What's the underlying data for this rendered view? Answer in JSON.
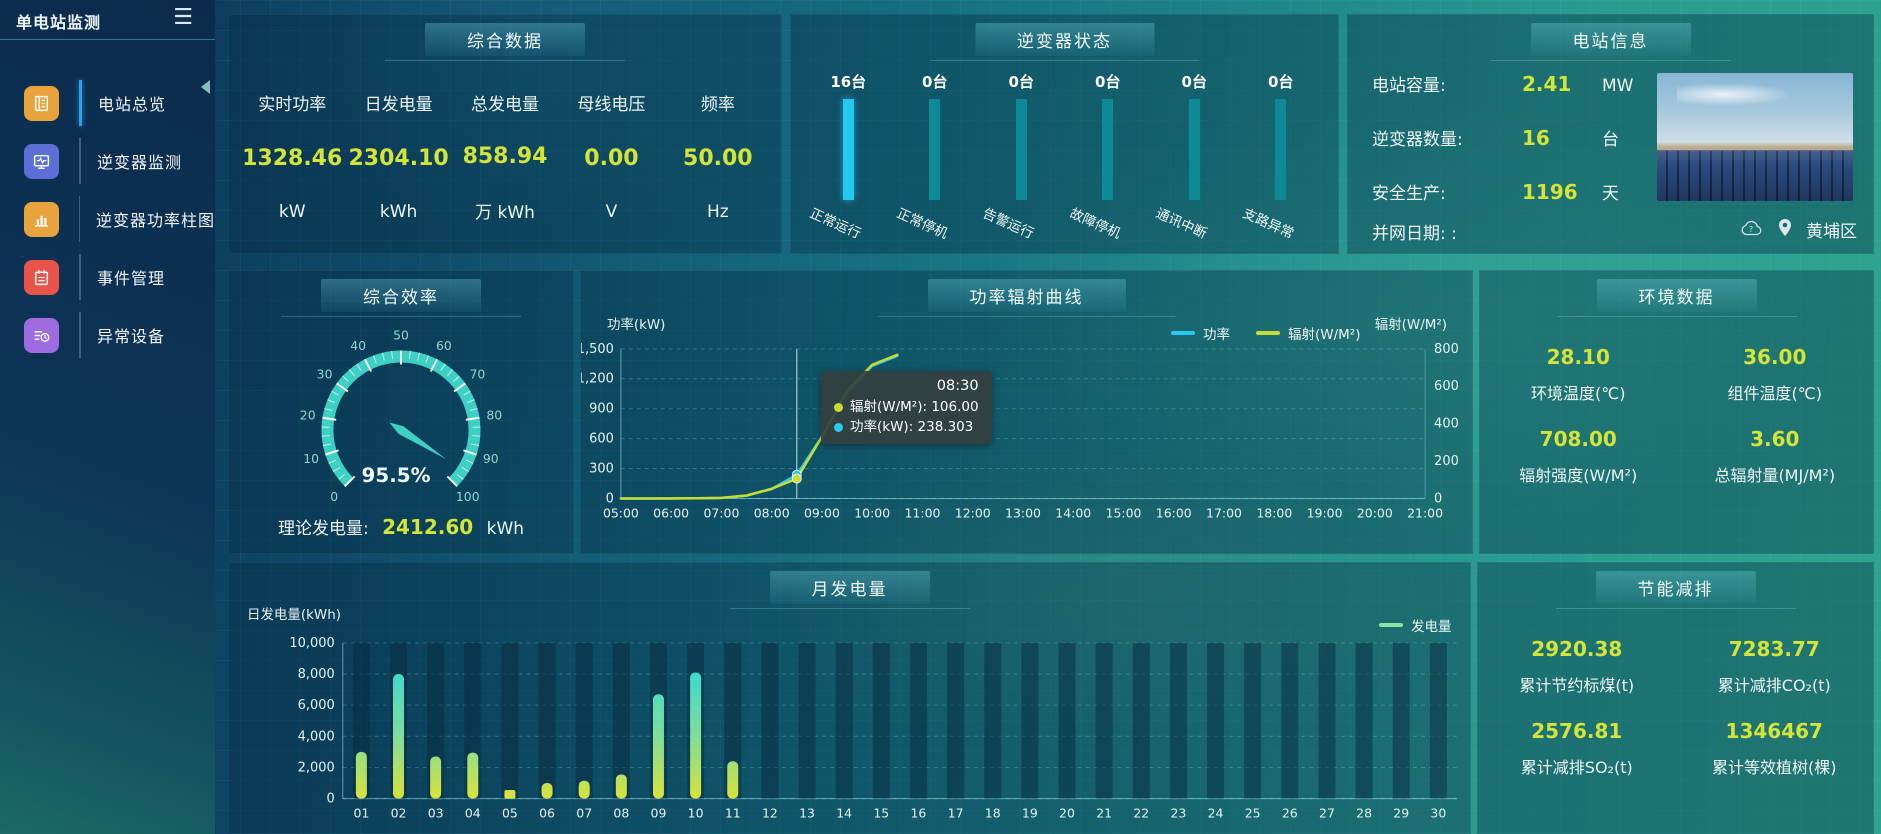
{
  "sidebar": {
    "title": "单电站监测",
    "menu": [
      {
        "label": "电站总览",
        "icon": "report-icon",
        "color": "#e8a33d",
        "active": true
      },
      {
        "label": "逆变器监测",
        "icon": "monitor-icon",
        "color": "#5c6fd6",
        "active": false
      },
      {
        "label": "逆变器功率柱图",
        "icon": "barchart-icon",
        "color": "#e8a33d",
        "active": false
      },
      {
        "label": "事件管理",
        "icon": "event-icon",
        "color": "#e85449",
        "active": false
      },
      {
        "label": "异常设备",
        "icon": "device-icon",
        "color": "#9e6be0",
        "active": false
      }
    ]
  },
  "overview": {
    "title": "综合数据",
    "metrics": [
      {
        "label": "实时功率",
        "value": "1328.46",
        "unit": "kW"
      },
      {
        "label": "日发电量",
        "value": "2304.10",
        "unit": "kWh"
      },
      {
        "label": "总发电量",
        "value": "858.94",
        "unit": "万 kWh"
      },
      {
        "label": "母线电压",
        "value": "0.00",
        "unit": "V"
      },
      {
        "label": "频率",
        "value": "50.00",
        "unit": "Hz"
      }
    ]
  },
  "inverter_status": {
    "title": "逆变器状态",
    "items": [
      {
        "count": "16台",
        "label": "正常运行",
        "highlight": true
      },
      {
        "count": "0台",
        "label": "正常停机",
        "highlight": false
      },
      {
        "count": "0台",
        "label": "告警运行",
        "highlight": false
      },
      {
        "count": "0台",
        "label": "故障停机",
        "highlight": false
      },
      {
        "count": "0台",
        "label": "通讯中断",
        "highlight": false
      },
      {
        "count": "0台",
        "label": "支路异常",
        "highlight": false
      }
    ]
  },
  "station_info": {
    "title": "电站信息",
    "rows": [
      {
        "label": "电站容量:",
        "value": "2.41",
        "unit": "MW"
      },
      {
        "label": "逆变器数量:",
        "value": "16",
        "unit": "台"
      },
      {
        "label": "安全生产:",
        "value": "1196",
        "unit": "天"
      }
    ],
    "grid_date_label": "并网日期:  :",
    "location": "黄埔区"
  },
  "efficiency": {
    "title": "综合效率",
    "gauge": {
      "value": 95.5,
      "display": "95.5%",
      "min": 0,
      "max": 100,
      "tick_labels": [
        "0",
        "10",
        "20",
        "30",
        "40",
        "50",
        "60",
        "70",
        "80",
        "90",
        "100"
      ]
    },
    "theory_label": "理论发电量:",
    "theory_value": "2412.60",
    "theory_unit": "kWh"
  },
  "power_radiation": {
    "title": "功率辐射曲线",
    "y_left": {
      "label": "功率(kW)",
      "max": 1500,
      "ticks": [
        "1,500",
        "1,200",
        "900",
        "600",
        "300",
        "0"
      ]
    },
    "y_right": {
      "label": "辐射(W/M²)",
      "max": 800,
      "ticks": [
        "800",
        "600",
        "400",
        "200",
        "0"
      ]
    },
    "x_labels": [
      "05:00",
      "06:00",
      "07:00",
      "08:00",
      "09:00",
      "10:00",
      "11:00",
      "12:00",
      "13:00",
      "14:00",
      "15:00",
      "16:00",
      "17:00",
      "18:00",
      "19:00",
      "20:00",
      "21:00"
    ],
    "legend": [
      {
        "name": "功率",
        "color": "#29c9f0"
      },
      {
        "name": "辐射(W/M²)",
        "color": "#c9dc30"
      }
    ],
    "series": [
      {
        "name": "功率",
        "axis": "left",
        "color": "#29c9f0",
        "data": [
          [
            "05:00",
            0
          ],
          [
            "05:30",
            0
          ],
          [
            "06:00",
            1
          ],
          [
            "06:30",
            2
          ],
          [
            "07:00",
            5
          ],
          [
            "07:30",
            28
          ],
          [
            "08:00",
            95
          ],
          [
            "08:30",
            238.3
          ],
          [
            "09:00",
            620
          ],
          [
            "09:30",
            1060
          ],
          [
            "10:00",
            1330
          ],
          [
            "10:30",
            1430
          ]
        ]
      },
      {
        "name": "辐射(W/M²)",
        "axis": "right",
        "color": "#c9dc30",
        "data": [
          [
            "05:00",
            0
          ],
          [
            "05:30",
            0
          ],
          [
            "06:00",
            0
          ],
          [
            "06:30",
            1
          ],
          [
            "07:00",
            3
          ],
          [
            "07:30",
            16
          ],
          [
            "08:00",
            52
          ],
          [
            "08:30",
            106
          ],
          [
            "09:00",
            330
          ],
          [
            "09:30",
            575
          ],
          [
            "10:00",
            715
          ],
          [
            "10:30",
            768
          ]
        ]
      }
    ],
    "crosshair_time": "08:30",
    "tooltip": {
      "title": "08:30",
      "rows": [
        {
          "color": "#c9dc30",
          "label": "辐射(W/M²)",
          "value": "106.00"
        },
        {
          "color": "#29c9f0",
          "label": "功率(kW)",
          "value": "238.303"
        }
      ]
    }
  },
  "environment": {
    "title": "环境数据",
    "cells": [
      {
        "value": "28.10",
        "label": "环境温度(℃)"
      },
      {
        "value": "36.00",
        "label": "组件温度(℃)"
      },
      {
        "value": "708.00",
        "label": "辐射强度(W/M²)"
      },
      {
        "value": "3.60",
        "label": "总辐射量(MJ/M²)"
      }
    ]
  },
  "monthly": {
    "title": "月发电量",
    "y_label": "日发电量(kWh)",
    "y_ticks": [
      "10,000",
      "8,000",
      "6,000",
      "4,000",
      "2,000",
      "0"
    ],
    "y_max": 10000,
    "legend": {
      "name": "发电量",
      "color": "#8be3a6"
    },
    "categories": [
      "01",
      "02",
      "03",
      "04",
      "05",
      "06",
      "07",
      "08",
      "09",
      "10",
      "11",
      "12",
      "13",
      "14",
      "15",
      "16",
      "17",
      "18",
      "19",
      "20",
      "21",
      "22",
      "23",
      "24",
      "25",
      "26",
      "27",
      "28",
      "29",
      "30"
    ],
    "values": [
      3000,
      8000,
      2700,
      2950,
      550,
      1000,
      1150,
      1550,
      6700,
      8100,
      2400,
      0,
      0,
      0,
      0,
      0,
      0,
      0,
      0,
      0,
      0,
      0,
      0,
      0,
      0,
      0,
      0,
      0,
      0,
      0
    ]
  },
  "savings": {
    "title": "节能减排",
    "cells": [
      {
        "value": "2920.38",
        "label": "累计节约标煤(t)"
      },
      {
        "value": "7283.77",
        "label": "累计减排CO₂(t)"
      },
      {
        "value": "2576.81",
        "label": "累计减排SO₂(t)"
      },
      {
        "value": "1346467",
        "label": "累计等效植树(棵)"
      }
    ]
  },
  "chart_data": [
    {
      "type": "line",
      "title": "功率辐射曲线",
      "x": [
        "05:00",
        "05:30",
        "06:00",
        "06:30",
        "07:00",
        "07:30",
        "08:00",
        "08:30",
        "09:00",
        "09:30",
        "10:00",
        "10:30"
      ],
      "series": [
        {
          "name": "功率(kW)",
          "values": [
            0,
            0,
            1,
            2,
            5,
            28,
            95,
            238.3,
            620,
            1060,
            1330,
            1430
          ]
        },
        {
          "name": "辐射(W/M²)",
          "values": [
            0,
            0,
            0,
            1,
            3,
            16,
            52,
            106,
            330,
            575,
            715,
            768
          ]
        }
      ],
      "ylim_left": [
        0,
        1500
      ],
      "ylim_right": [
        0,
        800
      ],
      "legend_position": "top-right",
      "grid": true
    },
    {
      "type": "bar",
      "title": "月发电量",
      "xlabel": "",
      "ylabel": "日发电量(kWh)",
      "ylim": [
        0,
        10000
      ],
      "categories": [
        "01",
        "02",
        "03",
        "04",
        "05",
        "06",
        "07",
        "08",
        "09",
        "10",
        "11",
        "12",
        "13",
        "14",
        "15",
        "16",
        "17",
        "18",
        "19",
        "20",
        "21",
        "22",
        "23",
        "24",
        "25",
        "26",
        "27",
        "28",
        "29",
        "30"
      ],
      "values": [
        3000,
        8000,
        2700,
        2950,
        550,
        1000,
        1150,
        1550,
        6700,
        8100,
        2400,
        0,
        0,
        0,
        0,
        0,
        0,
        0,
        0,
        0,
        0,
        0,
        0,
        0,
        0,
        0,
        0,
        0,
        0,
        0
      ]
    },
    {
      "type": "gauge",
      "title": "综合效率",
      "value": 95.5,
      "unit": "%",
      "range": [
        0,
        100
      ]
    },
    {
      "type": "bar",
      "title": "逆变器状态",
      "categories": [
        "正常运行",
        "正常停机",
        "告警运行",
        "故障停机",
        "通讯中断",
        "支路异常"
      ],
      "values": [
        16,
        0,
        0,
        0,
        0,
        0
      ]
    }
  ]
}
